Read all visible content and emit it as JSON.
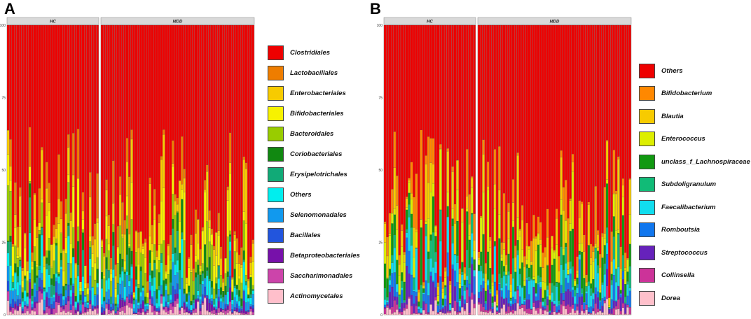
{
  "chart_data": [
    {
      "panel_label": "A",
      "type": "bar",
      "stacked": true,
      "facets": [
        "HC",
        "MDD"
      ],
      "facet_sample_counts": [
        38,
        67
      ],
      "ylim": [
        0,
        100
      ],
      "yticks": [
        "0",
        "25",
        "50",
        "75",
        "100"
      ],
      "legend_position": "right",
      "series": [
        {
          "name": "Clostridiales",
          "color": "#EE0000"
        },
        {
          "name": "Lactobacillales",
          "color": "#EE7D00"
        },
        {
          "name": "Enterobacteriales",
          "color": "#F7CB00"
        },
        {
          "name": "Bifidobacteriales",
          "color": "#F7F200"
        },
        {
          "name": "Bacteroidales",
          "color": "#99CC00"
        },
        {
          "name": "Coriobacteriales",
          "color": "#118811"
        },
        {
          "name": "Erysipelotrichales",
          "color": "#11AA77"
        },
        {
          "name": "Others",
          "color": "#00EEEE"
        },
        {
          "name": "Selenomonadales",
          "color": "#1199EE"
        },
        {
          "name": "Bacillales",
          "color": "#2255DD"
        },
        {
          "name": "Betaproteobacteriales",
          "color": "#7711AA"
        },
        {
          "name": "Saccharimonadales",
          "color": "#CC44AA"
        },
        {
          "name": "Actinomycetales",
          "color": "#FFBFCB"
        }
      ]
    },
    {
      "panel_label": "B",
      "type": "bar",
      "stacked": true,
      "facets": [
        "HC",
        "MDD"
      ],
      "facet_sample_counts": [
        38,
        67
      ],
      "ylim": [
        0,
        100
      ],
      "yticks": [
        "0",
        "25",
        "50",
        "75",
        "100"
      ],
      "legend_position": "right",
      "series": [
        {
          "name": "Others",
          "color": "#EE0000"
        },
        {
          "name": "Bifidobacterium",
          "color": "#FF8800"
        },
        {
          "name": "Blautia",
          "color": "#F7CB00"
        },
        {
          "name": "Enterococcus",
          "color": "#DDEE00"
        },
        {
          "name": "unclass_f_Lachnospiraceae",
          "color": "#119911"
        },
        {
          "name": "Subdoligranulum",
          "color": "#11BB77"
        },
        {
          "name": "Faecalibacterium",
          "color": "#11DDEE"
        },
        {
          "name": "Romboutsia",
          "color": "#1177EE"
        },
        {
          "name": "Streptococcus",
          "color": "#6622BB"
        },
        {
          "name": "Collinsella",
          "color": "#CC3399"
        },
        {
          "name": "Dorea",
          "color": "#FFC0CB"
        }
      ]
    }
  ]
}
